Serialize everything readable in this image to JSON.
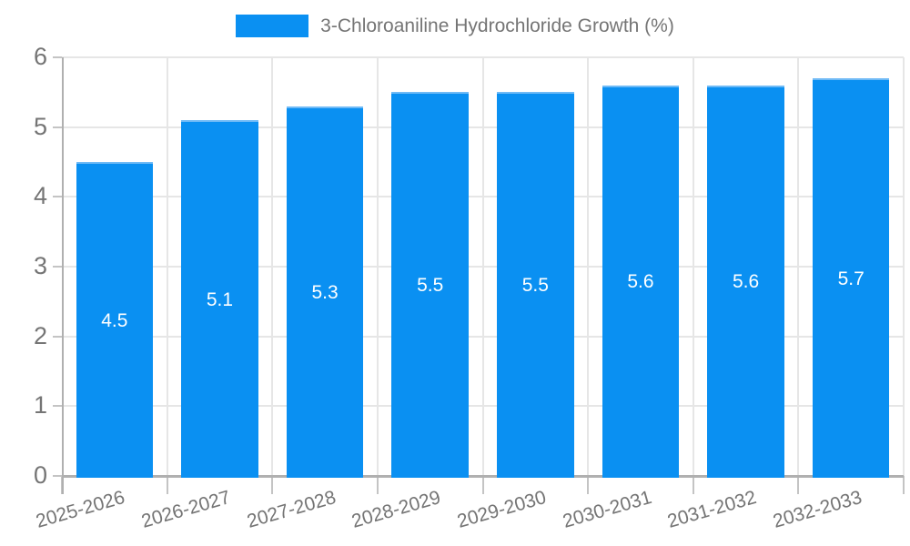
{
  "chart_data": {
    "type": "bar",
    "title": "",
    "legend": {
      "label": "3-Chloroaniline Hydrochloride Growth (%)",
      "position": "top"
    },
    "categories": [
      "2025-2026",
      "2026-2027",
      "2027-2028",
      "2028-2029",
      "2029-2030",
      "2030-2031",
      "2031-2032",
      "2032-2033"
    ],
    "series": [
      {
        "name": "3-Chloroaniline Hydrochloride Growth (%)",
        "values": [
          4.5,
          5.1,
          5.3,
          5.5,
          5.5,
          5.6,
          5.6,
          5.7
        ]
      }
    ],
    "value_labels": [
      "4.5",
      "5.1",
      "5.3",
      "5.5",
      "5.5",
      "5.6",
      "5.6",
      "5.7"
    ],
    "xlabel": "",
    "ylabel": "",
    "ylim": [
      0,
      6
    ],
    "yticks": [
      0,
      1,
      2,
      3,
      4,
      5,
      6
    ],
    "grid": true,
    "xlabel_rotation_deg": -16
  },
  "colors": {
    "bar": "#0a90f2",
    "bar_top_edge": "#6fbaf6",
    "bar_value_text": "#ffffff",
    "axis_text": "#757575",
    "gridline": "#e6e6e6",
    "axis_line": "#b0b0b0",
    "tick": "#c4c4c4",
    "background": "#ffffff"
  }
}
